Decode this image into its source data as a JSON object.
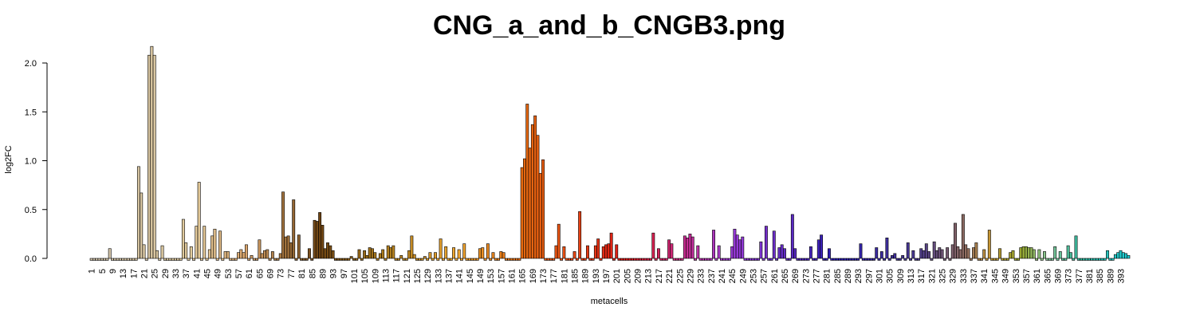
{
  "chart_data": {
    "type": "bar",
    "title": "CNG_a_and_b_CNGB3.png",
    "xlabel": "metacells",
    "ylabel": "log2FC",
    "ylim": [
      0,
      2.2
    ],
    "yticks": [
      "0.0",
      "0.5",
      "1.0",
      "1.5",
      "2.0"
    ],
    "ytick_values": [
      0,
      0.5,
      1.0,
      1.5,
      2.0
    ],
    "n_bars": 396,
    "xtick_every": 4,
    "grid": false,
    "legend": "none",
    "color_stops": [
      {
        "at": 1,
        "color": "#cdc0a8"
      },
      {
        "at": 40,
        "color": "#e2cb9c"
      },
      {
        "at": 60,
        "color": "#dba66d"
      },
      {
        "at": 88,
        "color": "#6e4413"
      },
      {
        "at": 110,
        "color": "#a7781c"
      },
      {
        "at": 140,
        "color": "#f0a830"
      },
      {
        "at": 165,
        "color": "#e46a10"
      },
      {
        "at": 180,
        "color": "#ec5212"
      },
      {
        "at": 205,
        "color": "#de1616"
      },
      {
        "at": 225,
        "color": "#cc2a88"
      },
      {
        "at": 245,
        "color": "#9a3ad8"
      },
      {
        "at": 285,
        "color": "#2a1cb4"
      },
      {
        "at": 315,
        "color": "#48388e"
      },
      {
        "at": 335,
        "color": "#94705e"
      },
      {
        "at": 343,
        "color": "#c49434"
      },
      {
        "at": 355,
        "color": "#98a830"
      },
      {
        "at": 365,
        "color": "#86c896"
      },
      {
        "at": 378,
        "color": "#30b89e"
      },
      {
        "at": 396,
        "color": "#1ecad2"
      }
    ],
    "nonzero_values": [
      [
        8,
        0.1
      ],
      [
        19,
        0.94
      ],
      [
        20,
        0.67
      ],
      [
        21,
        0.14
      ],
      [
        23,
        2.08
      ],
      [
        24,
        2.17
      ],
      [
        25,
        2.08
      ],
      [
        26,
        0.08
      ],
      [
        28,
        0.13
      ],
      [
        36,
        0.4
      ],
      [
        37,
        0.16
      ],
      [
        39,
        0.12
      ],
      [
        41,
        0.33
      ],
      [
        42,
        0.78
      ],
      [
        44,
        0.33
      ],
      [
        46,
        0.09
      ],
      [
        47,
        0.23
      ],
      [
        48,
        0.3
      ],
      [
        50,
        0.28
      ],
      [
        52,
        0.07
      ],
      [
        53,
        0.07
      ],
      [
        57,
        0.06
      ],
      [
        58,
        0.09
      ],
      [
        59,
        0.06
      ],
      [
        60,
        0.14
      ],
      [
        62,
        0.03
      ],
      [
        65,
        0.19
      ],
      [
        66,
        0.05
      ],
      [
        67,
        0.08
      ],
      [
        68,
        0.09
      ],
      [
        70,
        0.07
      ],
      [
        73,
        0.05
      ],
      [
        74,
        0.68
      ],
      [
        75,
        0.22
      ],
      [
        76,
        0.23
      ],
      [
        77,
        0.16
      ],
      [
        78,
        0.6
      ],
      [
        80,
        0.24
      ],
      [
        84,
        0.1
      ],
      [
        86,
        0.39
      ],
      [
        87,
        0.38
      ],
      [
        88,
        0.47
      ],
      [
        89,
        0.34
      ],
      [
        90,
        0.1
      ],
      [
        91,
        0.16
      ],
      [
        92,
        0.13
      ],
      [
        93,
        0.08
      ],
      [
        100,
        0.02
      ],
      [
        103,
        0.09
      ],
      [
        105,
        0.08
      ],
      [
        106,
        0.03
      ],
      [
        107,
        0.11
      ],
      [
        108,
        0.1
      ],
      [
        109,
        0.06
      ],
      [
        111,
        0.05
      ],
      [
        112,
        0.09
      ],
      [
        114,
        0.13
      ],
      [
        115,
        0.11
      ],
      [
        116,
        0.13
      ],
      [
        119,
        0.03
      ],
      [
        122,
        0.08
      ],
      [
        123,
        0.23
      ],
      [
        124,
        0.04
      ],
      [
        128,
        0.02
      ],
      [
        130,
        0.06
      ],
      [
        132,
        0.06
      ],
      [
        134,
        0.2
      ],
      [
        136,
        0.12
      ],
      [
        139,
        0.11
      ],
      [
        141,
        0.09
      ],
      [
        143,
        0.15
      ],
      [
        149,
        0.1
      ],
      [
        150,
        0.11
      ],
      [
        152,
        0.15
      ],
      [
        154,
        0.06
      ],
      [
        157,
        0.07
      ],
      [
        158,
        0.06
      ],
      [
        165,
        0.93
      ],
      [
        166,
        1.02
      ],
      [
        167,
        1.58
      ],
      [
        168,
        1.13
      ],
      [
        169,
        1.37
      ],
      [
        170,
        1.46
      ],
      [
        171,
        1.26
      ],
      [
        172,
        0.87
      ],
      [
        173,
        1.01
      ],
      [
        178,
        0.13
      ],
      [
        179,
        0.35
      ],
      [
        181,
        0.12
      ],
      [
        185,
        0.07
      ],
      [
        187,
        0.48
      ],
      [
        190,
        0.13
      ],
      [
        193,
        0.13
      ],
      [
        194,
        0.2
      ],
      [
        196,
        0.12
      ],
      [
        197,
        0.14
      ],
      [
        198,
        0.15
      ],
      [
        199,
        0.26
      ],
      [
        201,
        0.14
      ],
      [
        215,
        0.26
      ],
      [
        217,
        0.1
      ],
      [
        221,
        0.19
      ],
      [
        222,
        0.15
      ],
      [
        227,
        0.23
      ],
      [
        228,
        0.21
      ],
      [
        229,
        0.25
      ],
      [
        230,
        0.22
      ],
      [
        232,
        0.13
      ],
      [
        238,
        0.29
      ],
      [
        240,
        0.13
      ],
      [
        245,
        0.12
      ],
      [
        246,
        0.3
      ],
      [
        247,
        0.24
      ],
      [
        248,
        0.19
      ],
      [
        249,
        0.22
      ],
      [
        256,
        0.17
      ],
      [
        258,
        0.33
      ],
      [
        261,
        0.28
      ],
      [
        263,
        0.11
      ],
      [
        264,
        0.14
      ],
      [
        265,
        0.1
      ],
      [
        268,
        0.45
      ],
      [
        269,
        0.1
      ],
      [
        275,
        0.12
      ],
      [
        278,
        0.19
      ],
      [
        279,
        0.24
      ],
      [
        282,
        0.1
      ],
      [
        294,
        0.15
      ],
      [
        300,
        0.11
      ],
      [
        302,
        0.07
      ],
      [
        304,
        0.21
      ],
      [
        306,
        0.03
      ],
      [
        307,
        0.05
      ],
      [
        310,
        0.03
      ],
      [
        312,
        0.16
      ],
      [
        314,
        0.08
      ],
      [
        317,
        0.1
      ],
      [
        318,
        0.08
      ],
      [
        319,
        0.15
      ],
      [
        320,
        0.07
      ],
      [
        322,
        0.17
      ],
      [
        323,
        0.08
      ],
      [
        324,
        0.11
      ],
      [
        325,
        0.09
      ],
      [
        327,
        0.11
      ],
      [
        329,
        0.14
      ],
      [
        330,
        0.36
      ],
      [
        331,
        0.12
      ],
      [
        332,
        0.09
      ],
      [
        333,
        0.45
      ],
      [
        334,
        0.14
      ],
      [
        335,
        0.1
      ],
      [
        337,
        0.11
      ],
      [
        338,
        0.16
      ],
      [
        341,
        0.09
      ],
      [
        343,
        0.29
      ],
      [
        347,
        0.1
      ],
      [
        351,
        0.06
      ],
      [
        352,
        0.08
      ],
      [
        355,
        0.11
      ],
      [
        356,
        0.12
      ],
      [
        357,
        0.12
      ],
      [
        358,
        0.11
      ],
      [
        359,
        0.11
      ],
      [
        360,
        0.09
      ],
      [
        362,
        0.09
      ],
      [
        364,
        0.07
      ],
      [
        368,
        0.12
      ],
      [
        370,
        0.07
      ],
      [
        373,
        0.13
      ],
      [
        374,
        0.06
      ],
      [
        376,
        0.23
      ],
      [
        388,
        0.08
      ],
      [
        391,
        0.04
      ],
      [
        392,
        0.06
      ],
      [
        393,
        0.08
      ],
      [
        394,
        0.06
      ],
      [
        395,
        0.05
      ],
      [
        396,
        0.03
      ]
    ],
    "negative_value": -0.02
  }
}
